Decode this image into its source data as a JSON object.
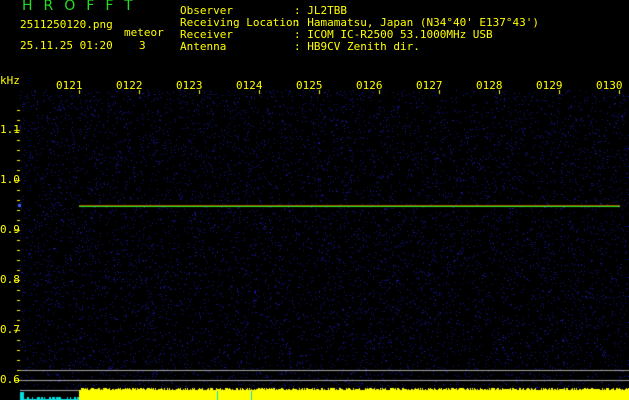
{
  "header": {
    "title": "HROFFT",
    "filename": "2511250120.png",
    "datetime": "25.11.25 01:20",
    "meteor_label": "meteor",
    "meteor_count": "3",
    "info": [
      {
        "label": "Observer",
        "value": ": JL2TBB"
      },
      {
        "label": "Receiving Location",
        "value": ": Hamamatsu, Japan (N34°40' E137°43')"
      },
      {
        "label": "Receiver",
        "value": ": ICOM IC-R2500 53.1000MHz USB"
      },
      {
        "label": "Antenna",
        "value": ": HB9CV Zenith dir."
      }
    ]
  },
  "chart_data": {
    "type": "heatmap",
    "ylabel": "kHz",
    "x_ticks": [
      "0121",
      "0122",
      "0123",
      "0124",
      "0125",
      "0126",
      "0127",
      "0128",
      "0129",
      "0130"
    ],
    "y_ticks": [
      "1.1",
      "1.0",
      "0.9",
      "0.8",
      "0.7",
      "0.6"
    ],
    "ylim": [
      0.58,
      1.18
    ],
    "carrier_khz": 0.948,
    "colors": {
      "background": "#000000",
      "noise": "#1a1aa0",
      "carrier": "#22ee22",
      "text": "#ffff00",
      "title": "#22dd22",
      "level": "#ffff00",
      "level_low": "#00e0e0",
      "reference_lines": "#a0a0a0"
    }
  }
}
